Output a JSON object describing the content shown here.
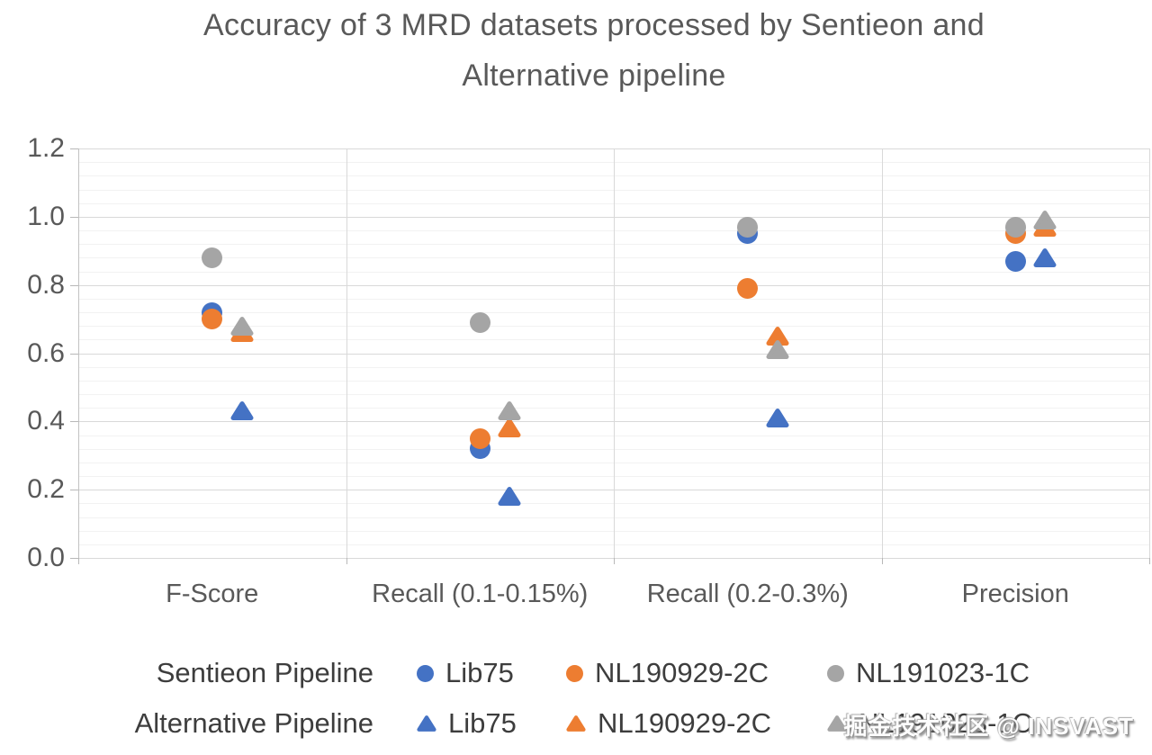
{
  "title": "Accuracy of 3 MRD datasets processed by Sentieon and Alternative pipeline",
  "title_lines": [
    "Accuracy of 3 MRD datasets processed by Sentieon and",
    "Alternative pipeline"
  ],
  "watermark": "掘金技术社区 @ INSVAST",
  "colors": {
    "blue": "#4472C4",
    "orange": "#ED7D31",
    "gray": "#A5A5A5",
    "grid_major": "#d9d9d9",
    "grid_minor": "#f2f2f2",
    "axis_text": "#595959",
    "legend_text": "#3d3d3d"
  },
  "chart_data": {
    "type": "scatter",
    "categories": [
      "F-Score",
      "Recall (0.1-0.15%)",
      "Recall (0.2-0.3%)",
      "Precision"
    ],
    "ylim": [
      0.0,
      1.2
    ],
    "ytick_step": 0.2,
    "yticks": [
      "1.2",
      "1.0",
      "0.8",
      "0.6",
      "0.4",
      "0.2",
      "0.0"
    ],
    "minor_grid_step": 0.04,
    "grid": true,
    "legend_position": "bottom",
    "series": [
      {
        "name": "Sentieon Pipeline - Lib75",
        "marker": "circle",
        "color": "blue",
        "values": [
          0.72,
          0.32,
          0.95,
          0.87
        ]
      },
      {
        "name": "Sentieon Pipeline - NL190929-2C",
        "marker": "circle",
        "color": "orange",
        "values": [
          0.7,
          0.35,
          0.79,
          0.95
        ]
      },
      {
        "name": "Sentieon Pipeline - NL191023-1C",
        "marker": "circle",
        "color": "gray",
        "values": [
          0.88,
          0.69,
          0.97,
          0.97
        ]
      },
      {
        "name": "Alternative Pipeline - Lib75",
        "marker": "triangle",
        "color": "blue",
        "values": [
          0.43,
          0.18,
          0.41,
          0.88
        ]
      },
      {
        "name": "Alternative Pipeline - NL190929-2C",
        "marker": "triangle",
        "color": "orange",
        "values": [
          0.66,
          0.38,
          0.65,
          0.97
        ]
      },
      {
        "name": "Alternative Pipeline - NL191023-1C",
        "marker": "triangle",
        "color": "gray",
        "values": [
          0.68,
          0.43,
          0.61,
          0.99
        ]
      }
    ],
    "legend": {
      "rows": [
        {
          "label": "Sentieon Pipeline",
          "marker": "circle",
          "items": [
            {
              "name": "Lib75",
              "color": "blue"
            },
            {
              "name": "NL190929-2C",
              "color": "orange"
            },
            {
              "name": "NL191023-1C",
              "color": "gray"
            }
          ]
        },
        {
          "label": "Alternative Pipeline",
          "marker": "triangle",
          "items": [
            {
              "name": "Lib75",
              "color": "blue"
            },
            {
              "name": "NL190929-2C",
              "color": "orange"
            },
            {
              "name": "NL191023-1C",
              "color": "gray"
            }
          ]
        }
      ]
    }
  }
}
